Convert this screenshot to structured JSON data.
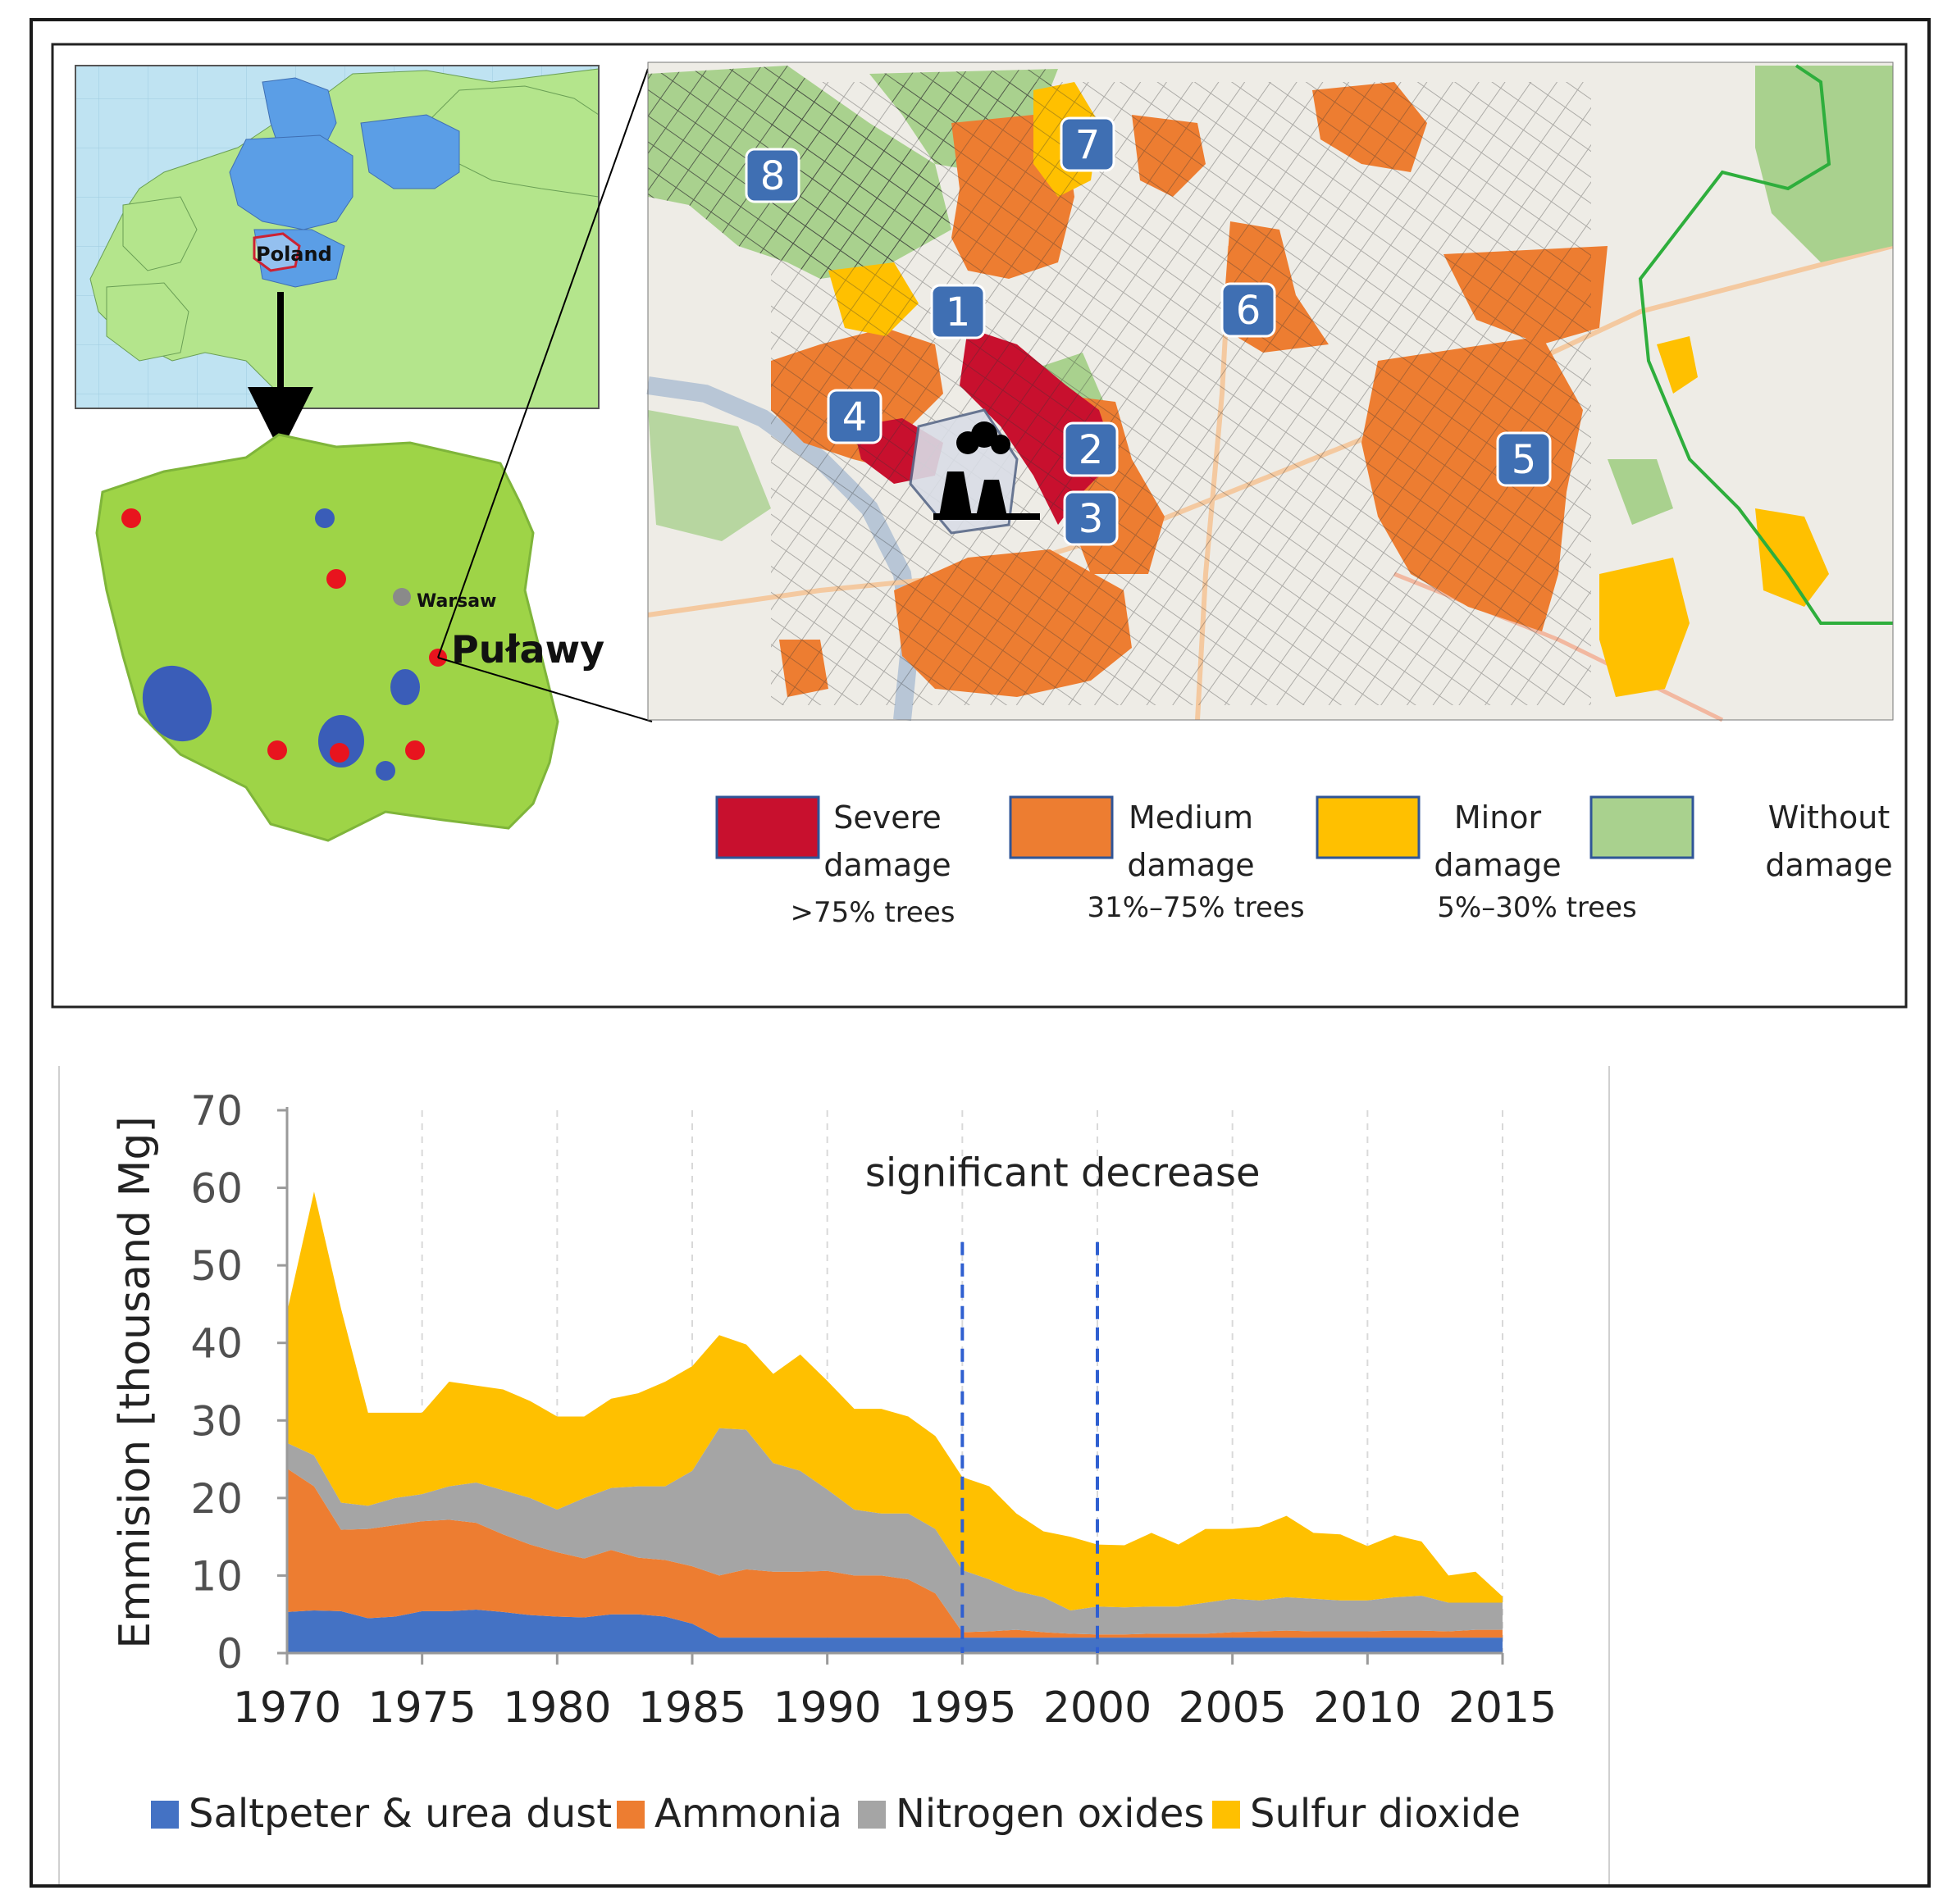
{
  "map": {
    "europe_country_label": "Poland",
    "city_label": "Warsaw",
    "site_label": "Puławy",
    "zone_numbers": [
      "1",
      "2",
      "3",
      "4",
      "5",
      "6",
      "7",
      "8"
    ],
    "legend": [
      {
        "label_lines": [
          "Severe",
          "damage"
        ],
        "range": ">75% trees",
        "color": "#c8102e"
      },
      {
        "label_lines": [
          "Medium",
          "damage"
        ],
        "range": "31%–75% trees",
        "color": "#ed7d31"
      },
      {
        "label_lines": [
          "Minor",
          "damage"
        ],
        "range": "5%–30% trees",
        "color": "#ffc000"
      },
      {
        "label_lines": [
          "Without",
          "damage"
        ],
        "range": "",
        "color": "#a9d18e"
      }
    ]
  },
  "chart_data": {
    "type": "area",
    "stacked": true,
    "ylabel": "Emmision [thousand Mg]",
    "xlabel": "",
    "ylim": [
      0,
      70
    ],
    "xlim": [
      1970,
      2015
    ],
    "yticks": [
      0,
      10,
      20,
      30,
      40,
      50,
      60,
      70
    ],
    "xticks": [
      1970,
      1975,
      1980,
      1985,
      1990,
      1995,
      2000,
      2005,
      2010,
      2015
    ],
    "grid": "vertical dashed",
    "legend_position": "bottom",
    "annotation": {
      "text": "significant decrease",
      "x_from": 1995,
      "x_to": 2000
    },
    "x": [
      1970,
      1971,
      1972,
      1973,
      1974,
      1975,
      1976,
      1977,
      1978,
      1979,
      1980,
      1981,
      1982,
      1983,
      1984,
      1985,
      1986,
      1987,
      1988,
      1989,
      1990,
      1991,
      1992,
      1993,
      1994,
      1995,
      1996,
      1997,
      1998,
      1999,
      2000,
      2001,
      2002,
      2003,
      2004,
      2005,
      2006,
      2007,
      2008,
      2009,
      2010,
      2011,
      2012,
      2013,
      2014,
      2015
    ],
    "series": [
      {
        "name": "Saltpeter & urea dust",
        "color": "#4472c4",
        "values": [
          5.3,
          5.5,
          5.4,
          4.5,
          4.7,
          5.4,
          5.4,
          5.6,
          5.3,
          4.9,
          4.7,
          4.6,
          5.0,
          5.0,
          4.7,
          3.8,
          2.0,
          2.0,
          2.0,
          2.0,
          2.0,
          2.0,
          2.0,
          2.0,
          2.0,
          2.0,
          2.0,
          2.0,
          2.0,
          2.0,
          2.0,
          2.0,
          2.0,
          2.0,
          2.0,
          2.0,
          2.0,
          2.0,
          2.0,
          2.0,
          2.0,
          2.0,
          2.0,
          2.0,
          2.0,
          2.0
        ]
      },
      {
        "name": "Ammonia",
        "color": "#ed7d31",
        "values": [
          18.5,
          16.0,
          10.5,
          11.5,
          11.8,
          11.6,
          11.8,
          11.2,
          10.0,
          9.1,
          8.3,
          7.6,
          8.3,
          7.3,
          7.3,
          7.4,
          8.0,
          8.8,
          8.5,
          8.5,
          8.6,
          8.0,
          8.0,
          7.5,
          5.7,
          0.7,
          0.8,
          1.0,
          0.7,
          0.5,
          0.4,
          0.4,
          0.5,
          0.5,
          0.5,
          0.7,
          0.8,
          0.9,
          0.8,
          0.8,
          0.8,
          0.9,
          0.9,
          0.8,
          1.0,
          1.0
        ]
      },
      {
        "name": "Nitrogen oxides",
        "color": "#a5a5a5",
        "values": [
          3.3,
          4.0,
          3.5,
          3.0,
          3.5,
          3.5,
          4.3,
          5.2,
          5.7,
          6.0,
          5.5,
          7.8,
          8.0,
          9.2,
          9.5,
          12.3,
          19.0,
          18.0,
          14.0,
          13.0,
          10.5,
          8.5,
          8.0,
          8.5,
          8.3,
          8.0,
          6.7,
          5.0,
          4.5,
          3.0,
          3.6,
          3.5,
          3.5,
          3.5,
          4.0,
          4.3,
          4.0,
          4.3,
          4.2,
          4.0,
          4.0,
          4.3,
          4.5,
          3.7,
          3.5,
          3.5
        ]
      },
      {
        "name": "Sulfur dioxide",
        "color": "#ffc000",
        "values": [
          16.9,
          34.0,
          25.0,
          12.0,
          11.0,
          10.5,
          13.5,
          12.5,
          13.0,
          12.5,
          12.0,
          10.5,
          11.5,
          12.0,
          13.5,
          13.5,
          12.0,
          11.0,
          11.5,
          15.0,
          14.0,
          13.0,
          13.5,
          12.5,
          12.0,
          12.0,
          12.0,
          10.0,
          8.5,
          9.5,
          8.0,
          8.0,
          9.5,
          8.0,
          9.5,
          9.0,
          9.5,
          10.5,
          8.5,
          8.5,
          7.0,
          8.0,
          7.0,
          3.5,
          4.0,
          0.8
        ]
      }
    ]
  }
}
